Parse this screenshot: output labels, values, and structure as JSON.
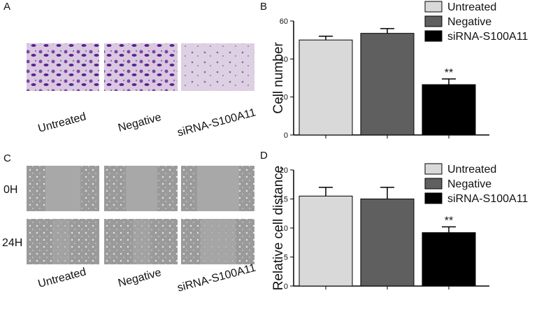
{
  "panels": {
    "a": {
      "letter": "A",
      "columns": [
        "Untreated",
        "Negative",
        "siRNA-S100A11"
      ]
    },
    "c": {
      "letter": "C",
      "rows": [
        "0H",
        "24H"
      ],
      "columns": [
        "Untreated",
        "Negative",
        "siRNA-S100A11"
      ]
    }
  },
  "chart_data": [
    {
      "type": "bar",
      "panel": "B",
      "y_label": "Cell number",
      "ylim": [
        0,
        60
      ],
      "yticks": [
        0,
        20,
        40,
        60
      ],
      "series": [
        {
          "name": "Untreated",
          "color": "#d9d9d9",
          "values": [
            50
          ],
          "errors": [
            2
          ]
        },
        {
          "name": "Negative",
          "color": "#5f5f5f",
          "values": [
            53.5
          ],
          "errors": [
            2.5
          ]
        },
        {
          "name": "siRNA-S100A11",
          "color": "#000000",
          "values": [
            26.5
          ],
          "errors": [
            3
          ]
        }
      ],
      "annotation": "**"
    },
    {
      "type": "bar",
      "panel": "D",
      "y_label": "Relative cell distance",
      "ylim": [
        0,
        20
      ],
      "yticks": [
        0,
        5,
        10,
        15,
        20
      ],
      "series": [
        {
          "name": "Untreated",
          "color": "#d9d9d9",
          "values": [
            15.5
          ],
          "errors": [
            1.5
          ]
        },
        {
          "name": "Negative",
          "color": "#5f5f5f",
          "values": [
            15
          ],
          "errors": [
            2
          ]
        },
        {
          "name": "siRNA-S100A11",
          "color": "#000000",
          "values": [
            9.2
          ],
          "errors": [
            1
          ]
        }
      ],
      "annotation": "**"
    }
  ]
}
